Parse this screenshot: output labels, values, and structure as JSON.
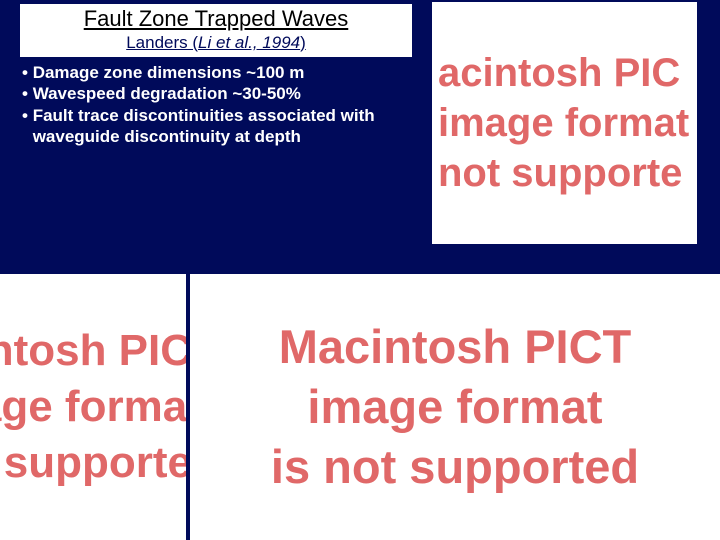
{
  "colors": {
    "background": "#000a5a",
    "header_bg": "#ffffff",
    "title_text": "#000000",
    "subtitle_text": "#000a5a",
    "bullet_text": "#ffffff",
    "pict_text": "#e06868",
    "pict_bg": "#ffffff"
  },
  "header": {
    "title": "Fault Zone Trapped Waves",
    "subtitle_prefix": "Landers (",
    "subtitle_italic": "Li et al., 1994",
    "subtitle_suffix": ")"
  },
  "bullets": [
    "Damage zone dimensions ~100 m",
    "Wavespeed degradation ~30-50%",
    "Fault trace discontinuities associated with waveguide discontinuity at depth"
  ],
  "pict_tr": {
    "line1": "acintosh PIC",
    "line2": "image format",
    "line3": "not supporte"
  },
  "pict_bl": {
    "line1": "cintosh PIC",
    "line2": "nage format",
    "line3": "ot supporte"
  },
  "pict_br": {
    "line1": "Macintosh PICT",
    "line2": "image format",
    "line3": "is not supported"
  }
}
